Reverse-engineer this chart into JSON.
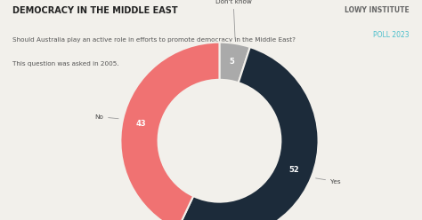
{
  "title": "DEMOCRACY IN THE MIDDLE EAST",
  "subtitle1": "Should Australia play an active role in efforts to promote democracy in the Middle East?",
  "subtitle2": "This question was asked in 2005.",
  "brand_line1": "LOWY INSTITUTE",
  "brand_line2": "POLL 2023",
  "wedge_values": [
    52,
    43,
    5
  ],
  "wedge_colors": [
    "#1c2b3a",
    "#f07272",
    "#aaaaaa"
  ],
  "wedge_labels": [
    "Yes",
    "No",
    "Don't know"
  ],
  "background_color": "#f2f0eb",
  "donut_width": 0.38,
  "title_fontsize": 7,
  "subtitle_fontsize": 5.2,
  "brand_fontsize1": 5.5,
  "brand_fontsize2": 5.5,
  "label_fontsize": 5.2,
  "value_fontsize": 6
}
